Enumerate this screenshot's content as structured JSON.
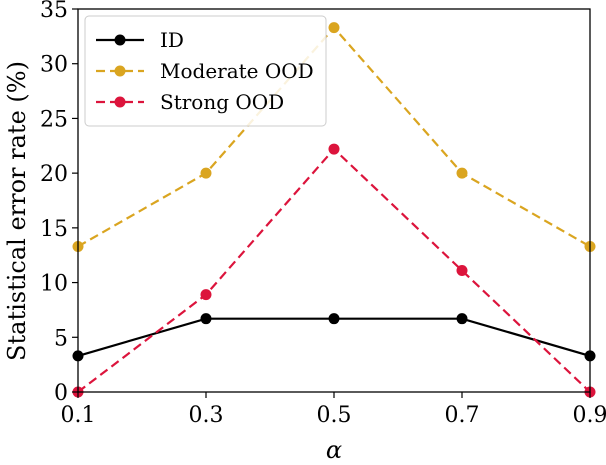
{
  "chart_data": {
    "type": "line",
    "title": "",
    "xlabel": "α",
    "ylabel": "Statistical error rate (%)",
    "x": [
      0.1,
      0.3,
      0.5,
      0.7,
      0.9
    ],
    "x_tick_labels": [
      "0.1",
      "0.3",
      "0.5",
      "0.7",
      "0.9"
    ],
    "xlim": [
      0.1,
      0.9
    ],
    "ylim": [
      0,
      35
    ],
    "y_ticks": [
      0,
      5,
      10,
      15,
      20,
      25,
      30,
      35
    ],
    "y_tick_labels": [
      "0",
      "5",
      "10",
      "15",
      "20",
      "25",
      "30",
      "35"
    ],
    "legend_position": "top-left",
    "grid": false,
    "series": [
      {
        "name": "ID",
        "color": "#000000",
        "dashed": false,
        "values": [
          3.3,
          6.7,
          6.7,
          6.7,
          3.3
        ]
      },
      {
        "name": "Moderate OOD",
        "color": "#DAA520",
        "dashed": true,
        "values": [
          13.3,
          20.0,
          33.3,
          20.0,
          13.3
        ]
      },
      {
        "name": "Strong OOD",
        "color": "#DC143C",
        "dashed": true,
        "values": [
          0.0,
          8.9,
          22.2,
          11.1,
          0.0
        ]
      }
    ]
  }
}
